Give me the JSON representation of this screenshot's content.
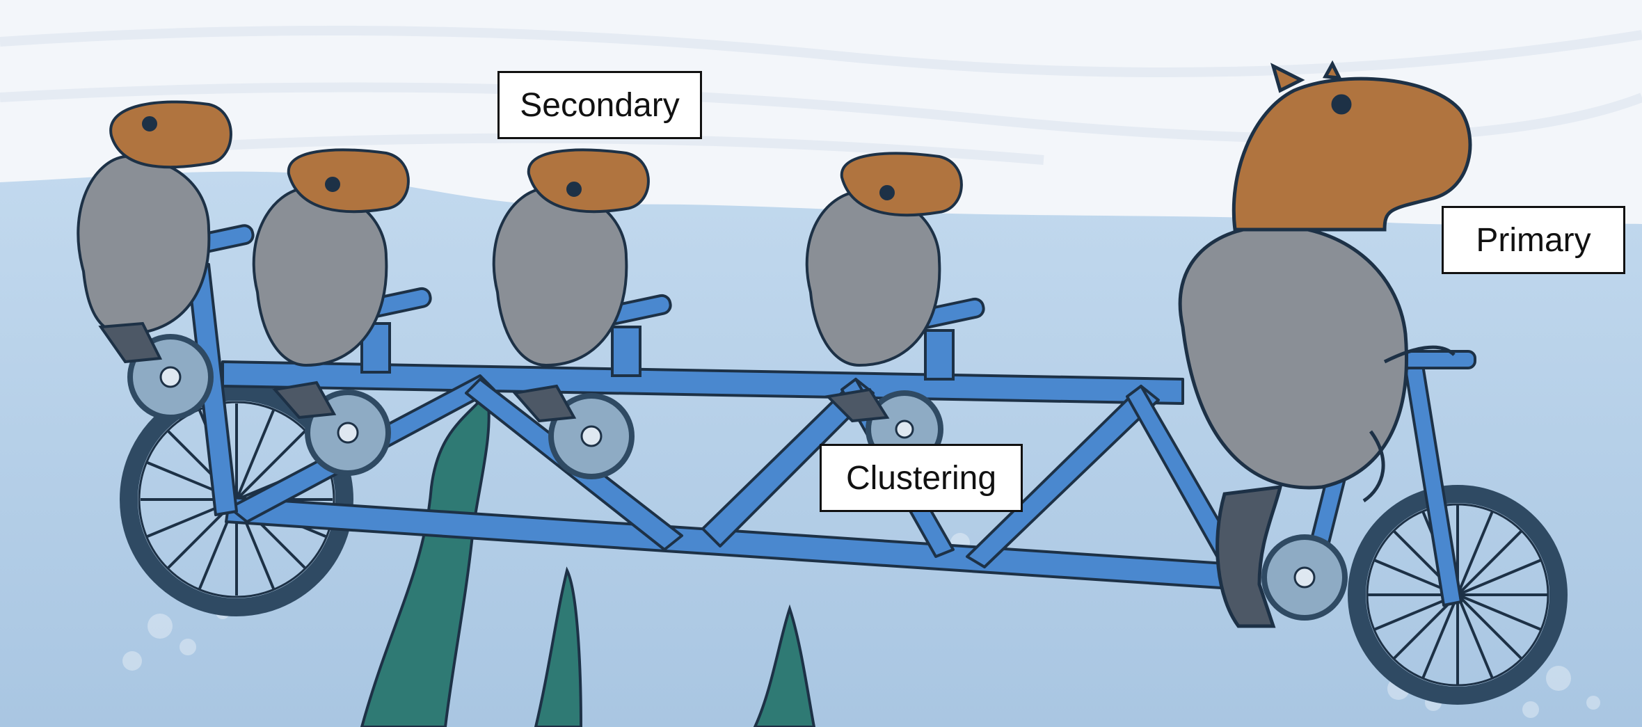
{
  "labels": {
    "secondary": "Secondary",
    "clustering": "Clustering",
    "primary": "Primary"
  },
  "colors": {
    "sky": "#f4f7fb",
    "water": "#b9d3ea",
    "frame": "#4a88cf",
    "outline": "#1d3146",
    "capybara_head": "#b0743f",
    "capybara_body_submerged": "#8a8f96",
    "capybara_legs": "#4d5866",
    "seaweed": "#2f7a74",
    "wheel_tire": "#2f4a63",
    "sprocket": "#8eabc4"
  },
  "icons": [
    "capybara-figure",
    "tandem-bicycle",
    "seaweed",
    "wheel",
    "sprocket"
  ]
}
